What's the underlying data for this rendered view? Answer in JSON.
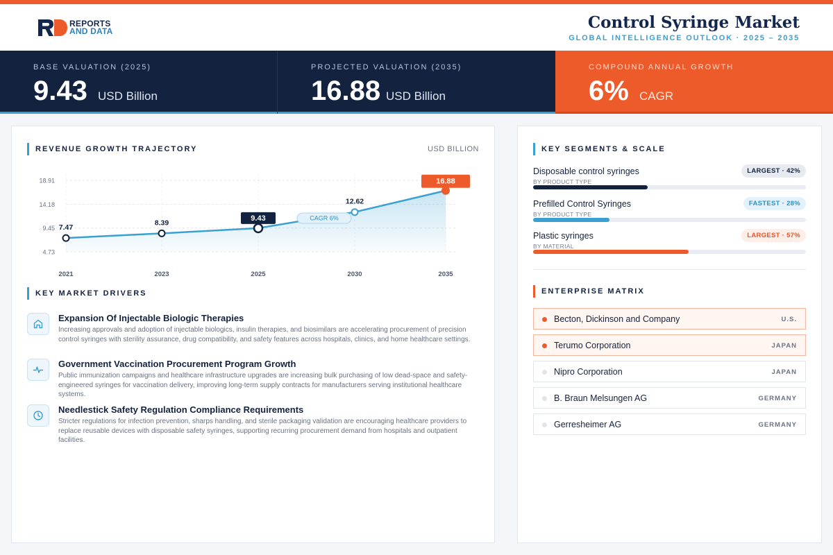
{
  "header": {
    "logo_line1": "REPORTS",
    "logo_line2": "AND DATA",
    "title": "Control Syringe Market",
    "subtitle": "GLOBAL INTELLIGENCE OUTLOOK  ·  2025 – 2035"
  },
  "kpis": [
    {
      "label": "BASE VALUATION (2025)",
      "value": "9.43",
      "unit": "USD Billion"
    },
    {
      "label": "PROJECTED VALUATION (2035)",
      "value": "16.88",
      "unit": "USD Billion"
    },
    {
      "label": "COMPOUND ANNUAL GROWTH",
      "value": "6%",
      "unit": "CAGR"
    }
  ],
  "chart_section": {
    "title": "REVENUE GROWTH TRAJECTORY",
    "unit": "USD BILLION",
    "cagr_label": "CAGR 6%"
  },
  "chart_data": {
    "type": "area",
    "x": [
      "2021",
      "2023",
      "2025",
      "2030",
      "2035"
    ],
    "values": [
      7.47,
      8.39,
      9.43,
      12.62,
      16.88
    ],
    "data_labels": [
      "7.47",
      "8.39",
      "9.43",
      "12.62",
      "16.88"
    ],
    "ytick_labels": [
      "18.91",
      "14.18",
      "9.45",
      "4.73"
    ],
    "ylim": [
      4.73,
      18.91
    ],
    "grid": true,
    "colors": {
      "line": "#3aa0d1",
      "highlight": "#13223f",
      "final": "#ee5b2b"
    }
  },
  "drivers_section": {
    "title": "KEY MARKET DRIVERS",
    "items": [
      {
        "icon": "building-icon",
        "title": "Expansion Of Injectable Biologic Therapies",
        "desc": "Increasing approvals and adoption of injectable biologics, insulin therapies, and biosimilars are accelerating procurement of precision control syringes with sterility assurance, drug compatibility, and safety features across hospitals, clinics, and home healthcare settings."
      },
      {
        "icon": "pulse-icon",
        "title": "Government Vaccination Procurement Program Growth",
        "desc": "Public immunization campaigns and healthcare infrastructure upgrades are increasing bulk purchasing of low dead-space and safety-engineered syringes for vaccination delivery, improving long-term supply contracts for manufacturers serving institutional healthcare systems."
      },
      {
        "icon": "clock-icon",
        "title": "Needlestick Safety Regulation Compliance Requirements",
        "desc": "Stricter regulations for infection prevention, sharps handling, and sterile packaging validation are encouraging healthcare providers to replace reusable devices with disposable safety syringes, supporting recurring procurement demand from hospitals and outpatient facilities."
      }
    ]
  },
  "segments_section": {
    "title": "KEY SEGMENTS & SCALE",
    "items": [
      {
        "name": "Disposable control syringes",
        "sub": "BY PRODUCT TYPE",
        "badge": "LARGEST · 42%",
        "share": 42,
        "color": "#13223f",
        "badge_style": "navy"
      },
      {
        "name": "Prefilled Control Syringes",
        "sub": "BY PRODUCT TYPE",
        "badge": "FASTEST · 28%",
        "share": 28,
        "color": "#3aa0d1",
        "badge_style": "blue"
      },
      {
        "name": "Plastic syringes",
        "sub": "BY MATERIAL",
        "badge": "LARGEST · 57%",
        "share": 57,
        "color": "#ee5b2b",
        "badge_style": "orange"
      }
    ]
  },
  "enterprise_section": {
    "title": "ENTERPRISE MATRIX",
    "items": [
      {
        "name": "Becton, Dickinson and Company",
        "country": "U.S.",
        "highlight": true
      },
      {
        "name": "Terumo Corporation",
        "country": "JAPAN",
        "highlight": true
      },
      {
        "name": "Nipro Corporation",
        "country": "JAPAN",
        "highlight": false
      },
      {
        "name": "B. Braun Melsungen AG",
        "country": "GERMANY",
        "highlight": false
      },
      {
        "name": "Gerresheimer AG",
        "country": "GERMANY",
        "highlight": false
      }
    ]
  }
}
